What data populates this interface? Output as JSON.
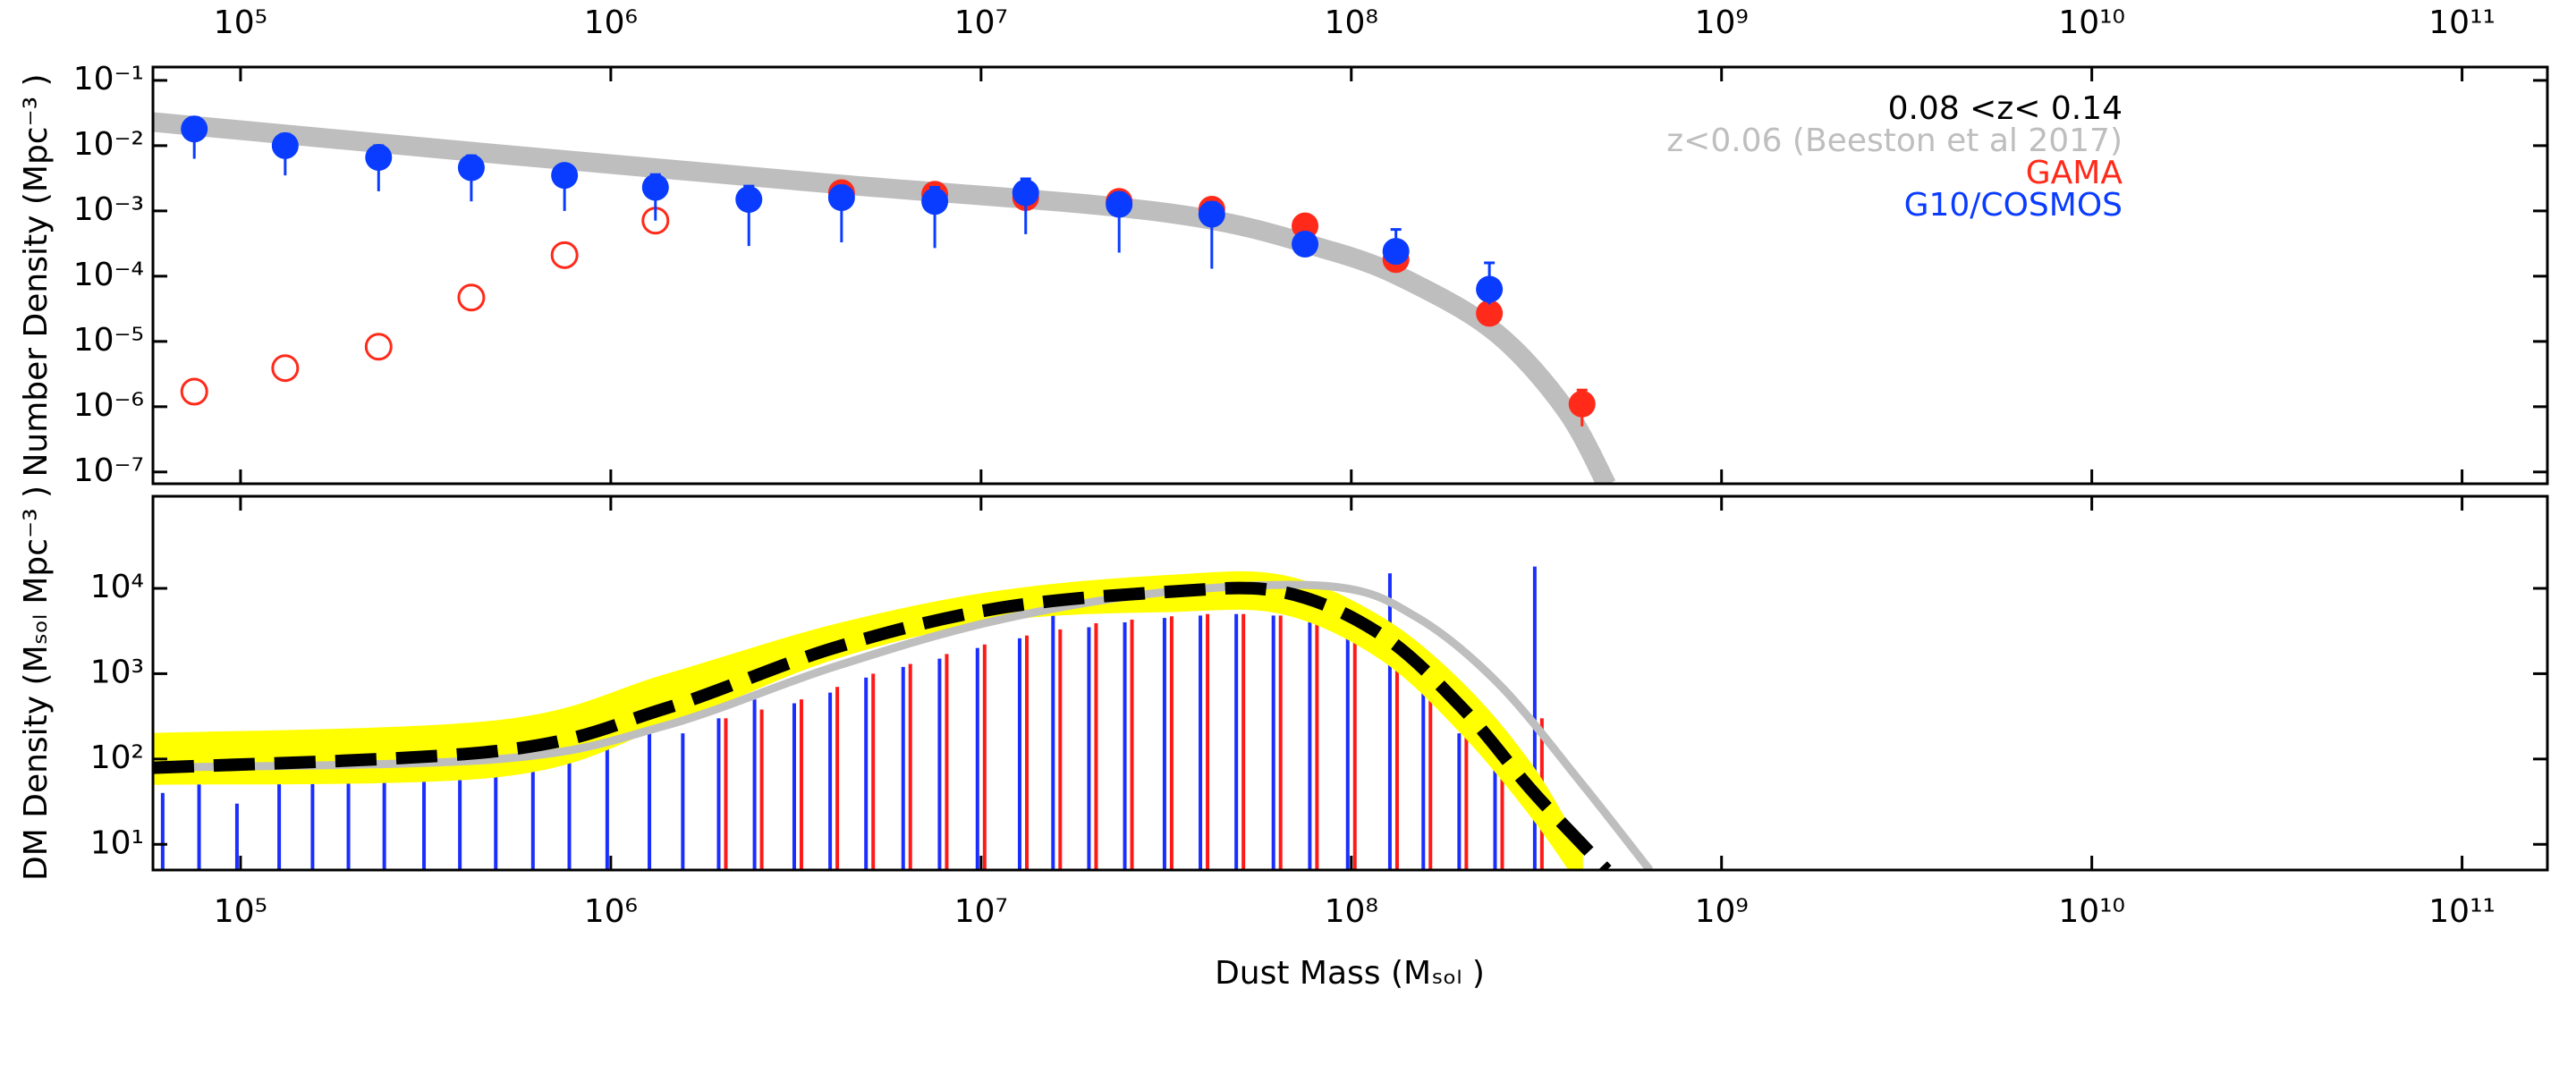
{
  "chart_data": [
    {
      "type": "scatter",
      "ylabel": "Number Density (Mpc⁻³ )",
      "annotations": [
        "0.08 <z< 0.14"
      ],
      "legend": "top right",
      "log_x": true,
      "log_y": true,
      "xlim": [
        58000,
        170000000000
      ],
      "ylim": [
        6.6e-08,
        0.16
      ],
      "xticks": [
        {
          "value": 100000,
          "label": "10⁵"
        },
        {
          "value": 1000000,
          "label": "10⁶"
        },
        {
          "value": 10000000,
          "label": "10⁷"
        },
        {
          "value": 100000000,
          "label": "10⁸"
        },
        {
          "value": 1000000000,
          "label": "10⁹"
        },
        {
          "value": 10000000000,
          "label": "10¹⁰"
        },
        {
          "value": 100000000000,
          "label": "10¹¹"
        }
      ],
      "yticks": [
        {
          "value": 1e-07,
          "label": "10⁻⁷"
        },
        {
          "value": 1e-06,
          "label": "10⁻⁶"
        },
        {
          "value": 1e-05,
          "label": "10⁻⁵"
        },
        {
          "value": 0.0001,
          "label": "10⁻⁴"
        },
        {
          "value": 0.001,
          "label": "10⁻³"
        },
        {
          "value": 0.01,
          "label": "10⁻²"
        },
        {
          "value": 0.1,
          "label": "10⁻¹"
        }
      ],
      "series": [
        {
          "name": "z<0.06 (Beeston et al 2017)",
          "type": "line",
          "color": "#bebebe",
          "x": [
            58000,
            500000,
            4000000,
            32000000,
            89000000,
            150000000,
            250000000,
            380000000,
            490000000
          ],
          "values": [
            0.023,
            0.0074,
            0.0026,
            0.00093,
            0.00024,
            7.4e-05,
            1.26e-05,
            8.9e-07,
            6.3e-08
          ]
        },
        {
          "name": "GAMA",
          "type": "scatter",
          "color": "#ff2a1a",
          "x": [
            4200000,
            7500000,
            13200000,
            23600000,
            42000000,
            75000000,
            132000000,
            236000000,
            420000000
          ],
          "values": [
            0.0019,
            0.0018,
            0.0016,
            0.0014,
            0.00106,
            0.00059,
            0.00018,
            2.7e-05,
            1.1e-06
          ],
          "lower": [
            null,
            null,
            null,
            null,
            null,
            null,
            null,
            null,
            5e-07
          ],
          "upper": [
            null,
            null,
            null,
            null,
            null,
            null,
            null,
            null,
            1.8e-06
          ]
        },
        {
          "type": "scatter",
          "marker": "open",
          "color": "#ff2a1a",
          "x": [
            75000,
            132000,
            236000,
            420000,
            750000,
            1320000
          ],
          "values": [
            1.7e-06,
            3.9e-06,
            8.3e-06,
            4.7e-05,
            0.00021,
            0.00071
          ]
        },
        {
          "name": "G10/COSMOS",
          "type": "scatter",
          "color": "#0a3cff",
          "x": [
            75000,
            132000,
            236000,
            420000,
            750000,
            1320000,
            2360000,
            4200000,
            7500000,
            13200000,
            23600000,
            42000000,
            75000000,
            132000000,
            236000000
          ],
          "values": [
            0.018,
            0.01,
            0.0066,
            0.0046,
            0.0035,
            0.0023,
            0.0015,
            0.0016,
            0.0014,
            0.0019,
            0.00126,
            0.00089,
            0.00031,
            0.00024,
            6.3e-05
          ],
          "lower": [
            0.0063,
            0.0035,
            0.002,
            0.0014,
            0.001,
            0.00071,
            0.00029,
            0.00033,
            0.00027,
            0.00044,
            0.00023,
            0.00013,
            0.00022,
            0.00015,
            3.7e-05
          ],
          "upper": [
            0.027,
            0.015,
            0.01,
            0.007,
            0.0049,
            0.0036,
            0.0024,
            0.0024,
            0.0023,
            0.0031,
            0.0019,
            0.00135,
            0.00042,
            0.00052,
            0.00016
          ]
        }
      ]
    },
    {
      "type": "bar",
      "ylabel": "DM Density (Mₛₒₗ Mpc⁻³ )",
      "xlabel": "Dust Mass (Mₛₒₗ )",
      "log_x": true,
      "log_y": true,
      "xlim": [
        58000,
        170000000000
      ],
      "ylim": [
        5,
        120000
      ],
      "xticks": [
        {
          "value": 100000,
          "label": "10⁵"
        },
        {
          "value": 1000000,
          "label": "10⁶"
        },
        {
          "value": 10000000,
          "label": "10⁷"
        },
        {
          "value": 100000000,
          "label": "10⁸"
        },
        {
          "value": 1000000000,
          "label": "10⁹"
        },
        {
          "value": 10000000000,
          "label": "10¹⁰"
        },
        {
          "value": 100000000000,
          "label": "10¹¹"
        }
      ],
      "yticks": [
        {
          "value": 10,
          "label": "10¹"
        },
        {
          "value": 100,
          "label": "10²"
        },
        {
          "value": 1000,
          "label": "10³"
        },
        {
          "value": 10000,
          "label": "10⁴"
        }
      ],
      "series": [
        {
          "type": "bar",
          "color": "#1a2eff",
          "x": [
            63000,
            79000,
            100000,
            130000,
            160000,
            200000,
            250000,
            320000,
            400000,
            500000,
            630000,
            790000,
            1000000,
            1300000,
            1600000,
            2000000,
            2500000,
            3200000,
            4000000,
            5000000,
            6300000,
            7900000,
            10000000,
            13000000,
            16000000,
            20000000,
            25000000,
            32000000,
            40000000,
            50000000,
            63000000,
            79000000,
            100000000,
            130000000,
            160000000,
            200000000,
            250000000,
            320000000
          ],
          "values": [
            40,
            120,
            30,
            150,
            60,
            100,
            140,
            80,
            200,
            120,
            300,
            150,
            400,
            250,
            200,
            300,
            500,
            450,
            600,
            900,
            1200,
            1500,
            2000,
            2600,
            10000,
            3500,
            4000,
            4500,
            4800,
            5000,
            4800,
            4000,
            2800,
            15000,
            800,
            200,
            80,
            18000
          ]
        },
        {
          "type": "bar",
          "color": "#ff1a1a",
          "x": [
            2000000,
            2500000,
            3200000,
            4000000,
            5000000,
            6300000,
            7900000,
            10000000,
            13000000,
            16000000,
            20000000,
            25000000,
            32000000,
            40000000,
            50000000,
            63000000,
            79000000,
            100000000,
            130000000,
            160000000,
            200000000,
            250000000,
            320000000
          ],
          "values": [
            300,
            380,
            500,
            700,
            1000,
            1300,
            1700,
            2200,
            2800,
            3300,
            3900,
            4300,
            4700,
            5000,
            5000,
            4800,
            3800,
            2700,
            1600,
            800,
            350,
            120,
            300
          ]
        },
        {
          "type": "area",
          "color": "#ffff00",
          "x": [
            58000,
            500000,
            1400000,
            4000000,
            11000000,
            32000000,
            65000000,
            120000000,
            200000000,
            310000000,
            420000000
          ],
          "upper": [
            197,
            280,
            960,
            3700,
            9100,
            14000,
            14000,
            4600,
            760,
            79,
            8.4
          ],
          "lower": [
            51,
            63,
            245,
            1500,
            4200,
            5400,
            5100,
            1500,
            195,
            20,
            3
          ]
        },
        {
          "type": "line",
          "color": "#bebebe",
          "x": [
            58000,
            500000,
            1400000,
            4000000,
            11000000,
            32000000,
            89000000,
            150000000,
            250000000,
            420000000,
            640000000
          ],
          "values": [
            79,
            100,
            245,
            1200,
            4200,
            9100,
            10500,
            4600,
            760,
            51,
            5
          ]
        },
        {
          "type": "line",
          "dash": true,
          "color": "#000000",
          "x": [
            58000,
            500000,
            1400000,
            4000000,
            11000000,
            32000000,
            65000000,
            120000000,
            200000000,
            310000000,
            490000000
          ],
          "values": [
            79,
            125,
            390,
            2000,
            5800,
            9100,
            9100,
            2900,
            390,
            41,
            5
          ]
        }
      ]
    }
  ]
}
